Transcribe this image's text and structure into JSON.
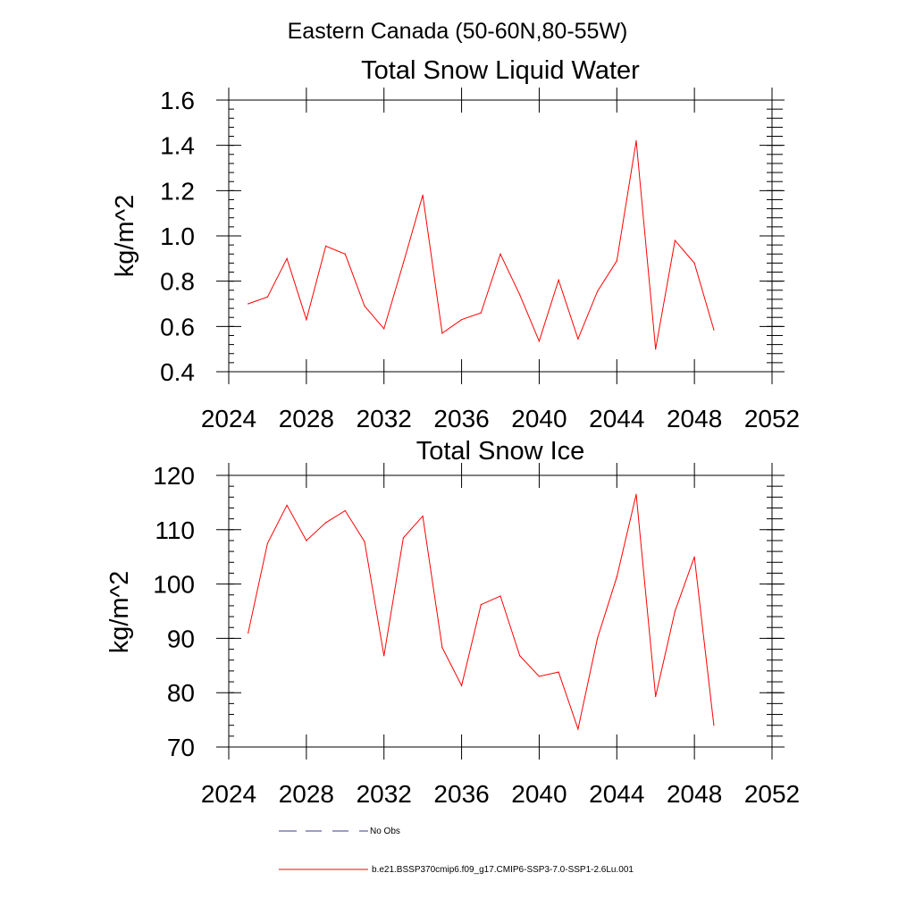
{
  "figure": {
    "title": "Eastern Canada (50-60N,80-55W)"
  },
  "colors": {
    "model": "#ff0000",
    "obs": "#3b3b8f",
    "axis": "#000000"
  },
  "legend": {
    "placement": "bottom",
    "obs_label": "No Obs",
    "model_label": "b.e21.BSSP370cmip6.f09_g17.CMIP6-SSP3-7.0-SSP1-2.6Lu.001"
  },
  "chart_data": [
    {
      "type": "line",
      "title": "Total Snow Liquid Water",
      "xlabel": "",
      "ylabel": "kg/m^2",
      "xlim": [
        2024,
        2052
      ],
      "ylim": [
        0.4,
        1.6
      ],
      "xticks": [
        2024,
        2028,
        2032,
        2036,
        2040,
        2044,
        2048,
        2052
      ],
      "xtick_labels": [
        "2024",
        "2028",
        "2032",
        "2036",
        "2040",
        "2044",
        "2048",
        "2052"
      ],
      "yticks": [
        0.4,
        0.6,
        0.8,
        1.0,
        1.2,
        1.4,
        1.6
      ],
      "ytick_labels": [
        "0.4",
        "0.6",
        "0.8",
        "1.0",
        "1.2",
        "1.4",
        "1.6"
      ],
      "grid": false,
      "series": [
        {
          "x": [
            2025,
            2026,
            2027,
            2028,
            2029,
            2030,
            2031,
            2032,
            2033,
            2034,
            2035,
            2036,
            2037,
            2038,
            2039,
            2040,
            2041,
            2042,
            2043,
            2044,
            2045,
            2046,
            2047,
            2048,
            2049
          ],
          "values": [
            0.7,
            0.73,
            0.9,
            0.63,
            0.955,
            0.92,
            0.69,
            0.59,
            0.88,
            1.18,
            0.57,
            0.63,
            0.66,
            0.92,
            0.74,
            0.535,
            0.805,
            0.545,
            0.755,
            0.89,
            1.42,
            0.5,
            0.98,
            0.88,
            0.585
          ]
        }
      ]
    },
    {
      "type": "line",
      "title": "Total Snow Ice",
      "xlabel": "",
      "ylabel": "kg/m^2",
      "xlim": [
        2024,
        2052
      ],
      "ylim": [
        70,
        120
      ],
      "xticks": [
        2024,
        2028,
        2032,
        2036,
        2040,
        2044,
        2048,
        2052
      ],
      "xtick_labels": [
        "2024",
        "2028",
        "2032",
        "2036",
        "2040",
        "2044",
        "2048",
        "2052"
      ],
      "yticks": [
        70,
        80,
        90,
        100,
        110,
        120
      ],
      "ytick_labels": [
        "70",
        "80",
        "90",
        "100",
        "110",
        "120"
      ],
      "grid": false,
      "series": [
        {
          "x": [
            2025,
            2026,
            2027,
            2028,
            2029,
            2030,
            2031,
            2032,
            2033,
            2034,
            2035,
            2036,
            2037,
            2038,
            2039,
            2040,
            2041,
            2042,
            2043,
            2044,
            2045,
            2046,
            2047,
            2048,
            2049
          ],
          "values": [
            91.0,
            107.5,
            114.5,
            108.0,
            111.3,
            113.5,
            107.8,
            86.8,
            108.5,
            112.5,
            88.3,
            81.3,
            96.2,
            97.8,
            86.8,
            83.0,
            83.8,
            73.3,
            90.0,
            101.3,
            116.5,
            79.3,
            95.0,
            105.0,
            74.0
          ]
        }
      ]
    }
  ]
}
